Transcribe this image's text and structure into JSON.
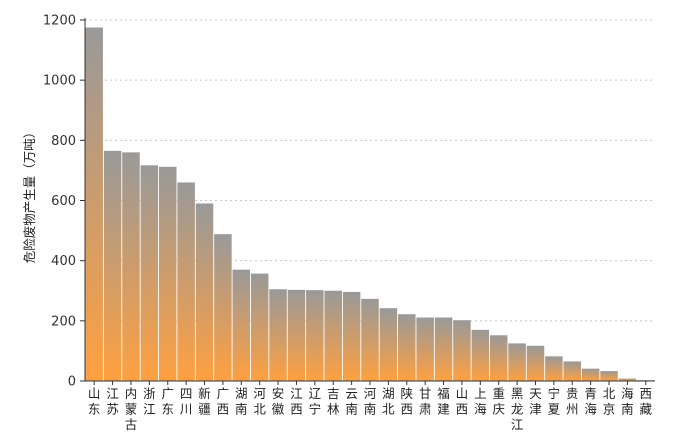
{
  "chart_data": {
    "type": "bar",
    "title": "",
    "xlabel": "",
    "ylabel": "危险废物产生量（万吨）",
    "ylim": [
      0,
      1200
    ],
    "yticks": [
      0,
      200,
      400,
      600,
      800,
      1000,
      1200
    ],
    "grid": true,
    "legend": "none",
    "colors": {
      "bar_top": "#999999",
      "bar_bottom": "#FFA040",
      "axis": "#333333",
      "grid": "#C8C8C8"
    },
    "categories": [
      "山东",
      "江苏",
      "内蒙古",
      "浙江",
      "广东",
      "四川",
      "新疆",
      "广西",
      "湖南",
      "河北",
      "安徽",
      "江西",
      "辽宁",
      "吉林",
      "云南",
      "河南",
      "湖北",
      "陕西",
      "甘肃",
      "福建",
      "山西",
      "上海",
      "重庆",
      "黑龙江",
      "天津",
      "宁夏",
      "贵州",
      "青海",
      "北京",
      "海南",
      "西藏"
    ],
    "values": [
      1175,
      765,
      760,
      717,
      712,
      660,
      590,
      488,
      370,
      357,
      305,
      303,
      302,
      300,
      296,
      273,
      242,
      222,
      211,
      211,
      202,
      170,
      152,
      125,
      117,
      82,
      65,
      41,
      33,
      8,
      1
    ]
  }
}
